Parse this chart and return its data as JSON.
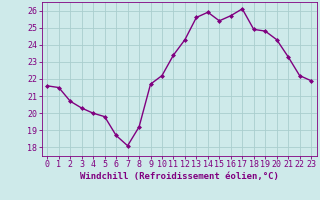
{
  "x": [
    0,
    1,
    2,
    3,
    4,
    5,
    6,
    7,
    8,
    9,
    10,
    11,
    12,
    13,
    14,
    15,
    16,
    17,
    18,
    19,
    20,
    21,
    22,
    23
  ],
  "y": [
    21.6,
    21.5,
    20.7,
    20.3,
    20.0,
    19.8,
    18.7,
    18.1,
    19.2,
    21.7,
    22.2,
    23.4,
    24.3,
    25.6,
    25.9,
    25.4,
    25.7,
    26.1,
    24.9,
    24.8,
    24.3,
    23.3,
    22.2,
    21.9
  ],
  "line_color": "#800080",
  "marker": "D",
  "marker_size": 2.0,
  "linewidth": 1.0,
  "bg_color": "#ceeaea",
  "grid_color": "#aacece",
  "xlabel": "Windchill (Refroidissement éolien,°C)",
  "xlabel_fontsize": 6.5,
  "tick_fontsize": 6.0,
  "ylim": [
    17.5,
    26.5
  ],
  "yticks": [
    18,
    19,
    20,
    21,
    22,
    23,
    24,
    25,
    26
  ],
  "xlim": [
    -0.5,
    23.5
  ],
  "xticks": [
    0,
    1,
    2,
    3,
    4,
    5,
    6,
    7,
    8,
    9,
    10,
    11,
    12,
    13,
    14,
    15,
    16,
    17,
    18,
    19,
    20,
    21,
    22,
    23
  ]
}
